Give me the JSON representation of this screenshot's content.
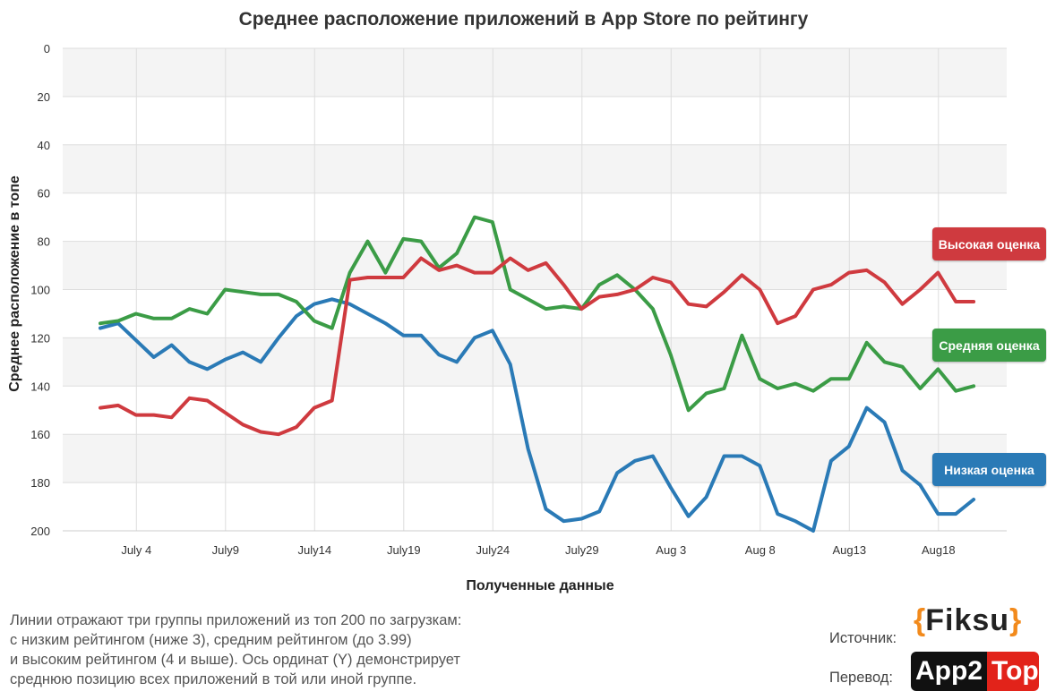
{
  "chart_data": {
    "type": "line",
    "title": "Среднее расположение приложений в App Store по рейтингу",
    "xlabel": "Полученные данные",
    "ylabel": "Среднее расположение в топе",
    "ylim": [
      0,
      200
    ],
    "y_inverted": true,
    "y_ticks": [
      "0",
      "20",
      "40",
      "60",
      "80",
      "100",
      "120",
      "140",
      "160",
      "180",
      "200"
    ],
    "x_ticks": [
      "July 4",
      "July9",
      "July14",
      "July19",
      "July24",
      "July29",
      "Aug 3",
      "Aug 8",
      "Aug13",
      "Aug18"
    ],
    "x_start": "July 2",
    "x_end": "Aug 21",
    "grid": true,
    "series": [
      {
        "name": "Низкая оценка",
        "color": "#2a7ab6",
        "values": [
          116,
          114,
          121,
          128,
          123,
          130,
          133,
          129,
          126,
          130,
          120,
          111,
          106,
          104,
          106,
          110,
          114,
          119,
          119,
          127,
          130,
          120,
          117,
          131,
          166,
          191,
          196,
          195,
          192,
          176,
          171,
          169,
          182,
          194,
          186,
          169,
          169,
          173,
          193,
          196,
          200,
          171,
          165,
          149,
          155,
          175,
          181,
          193,
          193,
          187
        ]
      },
      {
        "name": "Средняя оценка",
        "color": "#3b9c46",
        "values": [
          114,
          113,
          110,
          112,
          112,
          108,
          110,
          100,
          101,
          102,
          102,
          105,
          113,
          116,
          93,
          80,
          93,
          79,
          80,
          91,
          85,
          70,
          72,
          100,
          104,
          108,
          107,
          108,
          98,
          94,
          100,
          108,
          127,
          150,
          143,
          141,
          119,
          137,
          141,
          139,
          142,
          137,
          137,
          122,
          130,
          132,
          141,
          133,
          142,
          140
        ]
      },
      {
        "name": "Высокая оценка",
        "color": "#cf3a3f",
        "values": [
          149,
          148,
          152,
          152,
          153,
          145,
          146,
          151,
          156,
          159,
          160,
          157,
          149,
          146,
          96,
          95,
          95,
          95,
          87,
          92,
          90,
          93,
          93,
          87,
          92,
          89,
          98,
          108,
          103,
          102,
          100,
          95,
          97,
          106,
          107,
          101,
          94,
          100,
          114,
          111,
          100,
          98,
          93,
          92,
          97,
          106,
          100,
          93,
          105,
          105
        ]
      }
    ]
  },
  "legend": {
    "high": "Высокая оценка",
    "mid": "Средняя оценка",
    "low": "Низкая оценка"
  },
  "caption": {
    "line1": "Линии отражают три группы приложений из топ 200 по загрузкам:",
    "line2": "с низким рейтингом (ниже 3), средним рейтингом (до 3.99)",
    "line3": "и высоким рейтингом (4 и выше). Ось ординат (Y) демонстрирует",
    "line4": "среднюю позицию всех приложений в той или иной группе."
  },
  "credits": {
    "source_label": "Источник:",
    "translation_label": "Перевод:",
    "source_logo": "Fiksu",
    "translation_logo_left": "App2",
    "translation_logo_right": "Top"
  }
}
